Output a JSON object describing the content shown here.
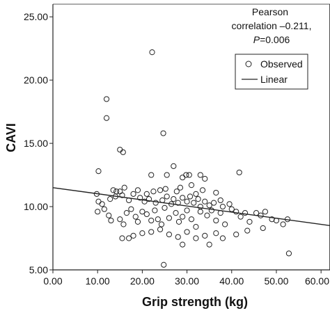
{
  "chart_data": {
    "type": "scatter",
    "xlabel": "Grip strength (kg)",
    "ylabel": "CAVI",
    "xlim": [
      0,
      62
    ],
    "ylim": [
      5,
      26
    ],
    "x_ticks": [
      "0.00",
      "10.00",
      "20.00",
      "30.00",
      "40.00",
      "50.00",
      "60.00"
    ],
    "x_tick_values": [
      0,
      10,
      20,
      30,
      40,
      50,
      60
    ],
    "y_ticks": [
      "5.00",
      "10.00",
      "15.00",
      "20.00",
      "25.00"
    ],
    "y_tick_values": [
      5,
      10,
      15,
      20,
      25
    ],
    "grid": false,
    "annotation": {
      "line1": "Pearson",
      "line2": "correlation –0.211,",
      "line3_italic": "P",
      "line3_rest": "=0.006"
    },
    "legend": {
      "position": "top-right",
      "observed_label": "Observed",
      "linear_label": "Linear"
    },
    "fit_line": {
      "x": [
        0,
        62
      ],
      "y": [
        11.5,
        8.5
      ]
    },
    "points": [
      [
        22.2,
        22.2
      ],
      [
        12.0,
        18.5
      ],
      [
        12.0,
        17.0
      ],
      [
        24.7,
        15.8
      ],
      [
        15.0,
        14.5
      ],
      [
        15.7,
        14.3
      ],
      [
        10.2,
        12.8
      ],
      [
        27.0,
        13.2
      ],
      [
        22.0,
        12.5
      ],
      [
        25.5,
        12.5
      ],
      [
        29.0,
        12.3
      ],
      [
        29.8,
        12.5
      ],
      [
        30.5,
        12.5
      ],
      [
        33.0,
        12.5
      ],
      [
        34.0,
        12.2
      ],
      [
        41.7,
        12.7
      ],
      [
        16.0,
        11.5
      ],
      [
        13.5,
        11.3
      ],
      [
        14.2,
        11.2
      ],
      [
        15.0,
        11.2
      ],
      [
        19.0,
        11.3
      ],
      [
        21.0,
        11.0
      ],
      [
        22.5,
        11.2
      ],
      [
        24.0,
        11.3
      ],
      [
        25.2,
        11.4
      ],
      [
        27.7,
        11.2
      ],
      [
        28.5,
        11.5
      ],
      [
        31.0,
        11.7
      ],
      [
        32.0,
        11.0
      ],
      [
        33.5,
        11.3
      ],
      [
        36.5,
        11.1
      ],
      [
        9.8,
        11.0
      ],
      [
        10.2,
        10.4
      ],
      [
        11.0,
        10.2
      ],
      [
        12.8,
        10.6
      ],
      [
        14.0,
        10.8
      ],
      [
        15.5,
        10.9
      ],
      [
        17.0,
        10.5
      ],
      [
        18.0,
        11.0
      ],
      [
        19.5,
        10.7
      ],
      [
        20.5,
        10.4
      ],
      [
        21.5,
        10.6
      ],
      [
        23.0,
        10.3
      ],
      [
        24.5,
        10.5
      ],
      [
        25.5,
        10.8
      ],
      [
        26.5,
        10.2
      ],
      [
        27.0,
        10.6
      ],
      [
        28.0,
        10.3
      ],
      [
        29.0,
        10.7
      ],
      [
        30.0,
        10.4
      ],
      [
        30.7,
        10.8
      ],
      [
        31.5,
        10.3
      ],
      [
        32.5,
        10.6
      ],
      [
        33.0,
        10.0
      ],
      [
        34.0,
        10.4
      ],
      [
        35.0,
        10.1
      ],
      [
        36.0,
        10.3
      ],
      [
        37.5,
        10.5
      ],
      [
        38.0,
        10.0
      ],
      [
        39.5,
        10.2
      ],
      [
        10.0,
        9.6
      ],
      [
        11.5,
        9.8
      ],
      [
        12.5,
        9.3
      ],
      [
        13.0,
        8.9
      ],
      [
        15.0,
        9.0
      ],
      [
        15.8,
        8.6
      ],
      [
        16.5,
        9.5
      ],
      [
        17.5,
        9.8
      ],
      [
        18.5,
        9.2
      ],
      [
        19.0,
        8.8
      ],
      [
        20.0,
        9.6
      ],
      [
        21.0,
        9.4
      ],
      [
        22.0,
        8.9
      ],
      [
        22.8,
        9.7
      ],
      [
        23.5,
        9.0
      ],
      [
        24.3,
        8.6
      ],
      [
        25.0,
        9.9
      ],
      [
        26.0,
        9.1
      ],
      [
        27.5,
        9.5
      ],
      [
        28.2,
        8.8
      ],
      [
        29.0,
        9.2
      ],
      [
        30.0,
        9.7
      ],
      [
        31.0,
        9.0
      ],
      [
        32.0,
        8.4
      ],
      [
        33.0,
        9.6
      ],
      [
        34.5,
        9.3
      ],
      [
        35.5,
        9.7
      ],
      [
        36.5,
        8.9
      ],
      [
        37.5,
        9.5
      ],
      [
        38.5,
        8.6
      ],
      [
        40.0,
        9.8
      ],
      [
        41.0,
        9.6
      ],
      [
        42.0,
        9.2
      ],
      [
        43.0,
        9.5
      ],
      [
        44.0,
        8.8
      ],
      [
        45.5,
        9.5
      ],
      [
        46.5,
        9.3
      ],
      [
        47.5,
        9.6
      ],
      [
        49.0,
        9.0
      ],
      [
        50.0,
        8.9
      ],
      [
        51.5,
        8.6
      ],
      [
        52.5,
        9.0
      ],
      [
        15.5,
        7.5
      ],
      [
        18.0,
        7.7
      ],
      [
        20.0,
        7.9
      ],
      [
        22.0,
        8.0
      ],
      [
        24.0,
        8.2
      ],
      [
        26.0,
        7.8
      ],
      [
        28.0,
        7.6
      ],
      [
        30.0,
        8.0
      ],
      [
        32.0,
        7.5
      ],
      [
        34.0,
        7.7
      ],
      [
        36.5,
        7.9
      ],
      [
        38.0,
        7.5
      ],
      [
        41.0,
        7.8
      ],
      [
        43.5,
        8.1
      ],
      [
        47.0,
        8.3
      ],
      [
        17.0,
        7.5
      ],
      [
        29.0,
        7.0
      ],
      [
        35.0,
        7.0
      ],
      [
        24.8,
        5.4
      ],
      [
        52.8,
        6.3
      ]
    ]
  }
}
